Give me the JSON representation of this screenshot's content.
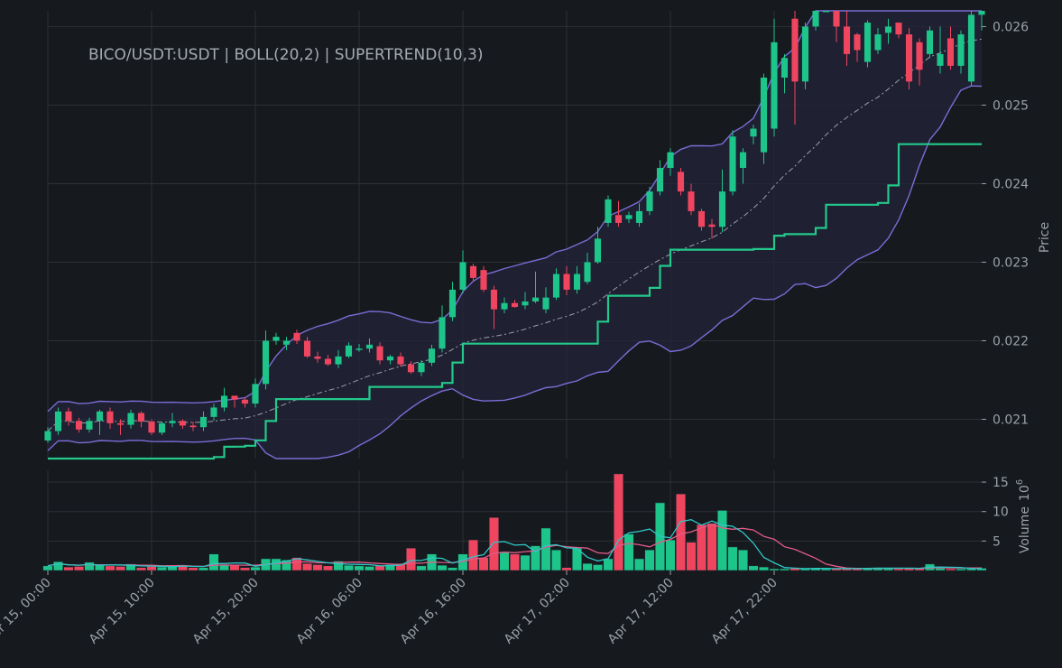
{
  "chart_data": {
    "type": "candlestick",
    "title": "BICO/USDT:USDT | BOLL(20,2) | SUPERTREND(10,3)",
    "price_axis": {
      "label": "Price",
      "ticks": [
        "0.021",
        "0.022",
        "0.023",
        "0.024",
        "0.025",
        "0.026"
      ],
      "ylim": [
        0.0205,
        0.0262
      ]
    },
    "volume_axis": {
      "label": "Volume",
      "exponent": "6",
      "ticks": [
        "5",
        "10",
        "15"
      ],
      "ylim": [
        0,
        17
      ]
    },
    "x_ticks": [
      "Apr 15, 00:00",
      "Apr 15, 10:00",
      "Apr 15, 20:00",
      "Apr 16, 06:00",
      "Apr 16, 16:00",
      "Apr 17, 02:00",
      "Apr 17, 12:00",
      "Apr 17, 22:00"
    ],
    "grid": true,
    "colors": {
      "up": "#1dc58a",
      "down": "#f0455f",
      "boll_band": "#7b6cd6",
      "boll_mid": "#9aa1a9",
      "boll_fill": "#232339",
      "supertrend_up": "#22c98b",
      "supertrend_down": "#f0455f",
      "vol_ma_fast": "#2fc6c6",
      "vol_ma_slow": "#e25b8a",
      "background": "#16191d"
    },
    "candles": {
      "open": [
        0.02073,
        0.02085,
        0.0211,
        0.02098,
        0.02087,
        0.02098,
        0.0211,
        0.02095,
        0.02093,
        0.02108,
        0.02097,
        0.02083,
        0.02095,
        0.02098,
        0.02092,
        0.0209,
        0.02103,
        0.02115,
        0.0213,
        0.02125,
        0.0212,
        0.02145,
        0.022,
        0.02195,
        0.0221,
        0.022,
        0.0218,
        0.02177,
        0.0217,
        0.0218,
        0.0219,
        0.0219,
        0.02193,
        0.02175,
        0.0218,
        0.0217,
        0.0216,
        0.02172,
        0.0219,
        0.0223,
        0.02265,
        0.02295,
        0.0229,
        0.02265,
        0.0224,
        0.02248,
        0.02245,
        0.0225,
        0.0224,
        0.02255,
        0.02285,
        0.02265,
        0.02275,
        0.023,
        0.0235,
        0.0236,
        0.02355,
        0.0235,
        0.02365,
        0.0239,
        0.0242,
        0.02415,
        0.0239,
        0.02365,
        0.02348,
        0.02345,
        0.0239,
        0.0242,
        0.0246,
        0.0244,
        0.0247,
        0.02535,
        0.0261,
        0.0253,
        0.026,
        0.02625,
        0.0262,
        0.026,
        0.0259,
        0.02555,
        0.0257,
        0.02592,
        0.02605,
        0.0259,
        0.0258,
        0.02565,
        0.0255,
        0.02585,
        0.0255,
        0.0253,
        0.02615
      ],
      "close": [
        0.02085,
        0.0211,
        0.02098,
        0.02087,
        0.02098,
        0.0211,
        0.02095,
        0.02093,
        0.02108,
        0.02097,
        0.02083,
        0.02095,
        0.02098,
        0.02092,
        0.0209,
        0.02103,
        0.02115,
        0.0213,
        0.02125,
        0.0212,
        0.02145,
        0.022,
        0.02205,
        0.022,
        0.022,
        0.0218,
        0.02177,
        0.0217,
        0.0218,
        0.02194,
        0.0219,
        0.02195,
        0.02175,
        0.0218,
        0.0217,
        0.0216,
        0.02172,
        0.0219,
        0.0223,
        0.02265,
        0.023,
        0.0228,
        0.02265,
        0.0224,
        0.02248,
        0.02243,
        0.0225,
        0.02255,
        0.02255,
        0.02285,
        0.02265,
        0.02285,
        0.023,
        0.0233,
        0.0238,
        0.0235,
        0.0236,
        0.02365,
        0.0239,
        0.0242,
        0.0244,
        0.0239,
        0.02365,
        0.02345,
        0.02345,
        0.0239,
        0.0246,
        0.0244,
        0.0247,
        0.02535,
        0.0258,
        0.0256,
        0.0253,
        0.026,
        0.02625,
        0.02635,
        0.026,
        0.02565,
        0.0257,
        0.02605,
        0.0259,
        0.026,
        0.0259,
        0.0253,
        0.02545,
        0.02595,
        0.02565,
        0.0255,
        0.0259,
        0.02615,
        0.0262
      ],
      "high": [
        0.0209,
        0.02115,
        0.02115,
        0.02102,
        0.02102,
        0.02112,
        0.02115,
        0.021,
        0.02112,
        0.0211,
        0.021,
        0.02097,
        0.02108,
        0.021,
        0.02097,
        0.0211,
        0.0212,
        0.0214,
        0.0213,
        0.02128,
        0.02152,
        0.02213,
        0.0221,
        0.02205,
        0.02214,
        0.02205,
        0.02186,
        0.02182,
        0.02188,
        0.02198,
        0.02196,
        0.02203,
        0.02198,
        0.02182,
        0.02185,
        0.02174,
        0.02175,
        0.02195,
        0.02245,
        0.02275,
        0.02315,
        0.02298,
        0.02295,
        0.0227,
        0.02255,
        0.02252,
        0.02262,
        0.02288,
        0.02268,
        0.02292,
        0.02295,
        0.02295,
        0.02312,
        0.02345,
        0.02385,
        0.02378,
        0.02364,
        0.02375,
        0.02396,
        0.0243,
        0.02445,
        0.0242,
        0.024,
        0.02368,
        0.02355,
        0.02418,
        0.02468,
        0.02445,
        0.02475,
        0.0254,
        0.0261,
        0.02565,
        0.0267,
        0.02605,
        0.0264,
        0.02635,
        0.0263,
        0.0264,
        0.02592,
        0.02608,
        0.02598,
        0.0261,
        0.026,
        0.02598,
        0.02585,
        0.026,
        0.026,
        0.026,
        0.02595,
        0.02625,
        0.02628
      ],
      "low": [
        0.0207,
        0.0208,
        0.02092,
        0.02083,
        0.02083,
        0.0208,
        0.02088,
        0.0208,
        0.02088,
        0.0209,
        0.0208,
        0.0208,
        0.0209,
        0.02088,
        0.02085,
        0.02085,
        0.02098,
        0.0211,
        0.02115,
        0.02115,
        0.02115,
        0.02138,
        0.02195,
        0.02188,
        0.02196,
        0.02178,
        0.02172,
        0.02168,
        0.02165,
        0.02178,
        0.02186,
        0.02185,
        0.0217,
        0.0217,
        0.02167,
        0.02158,
        0.02155,
        0.02168,
        0.02185,
        0.02225,
        0.0226,
        0.02275,
        0.02262,
        0.02215,
        0.02235,
        0.02242,
        0.0224,
        0.02248,
        0.02235,
        0.02252,
        0.02258,
        0.0226,
        0.02272,
        0.02298,
        0.02345,
        0.02345,
        0.0235,
        0.02345,
        0.0236,
        0.02385,
        0.0241,
        0.02385,
        0.0236,
        0.0234,
        0.0233,
        0.02338,
        0.02385,
        0.024,
        0.0245,
        0.02425,
        0.0246,
        0.02515,
        0.02475,
        0.0252,
        0.02595,
        0.0262,
        0.0258,
        0.0255,
        0.02555,
        0.02548,
        0.02565,
        0.02578,
        0.02585,
        0.0252,
        0.02525,
        0.0256,
        0.0254,
        0.02545,
        0.0254,
        0.02525,
        0.02595
      ]
    },
    "volume": [
      0.8,
      1.5,
      0.6,
      0.7,
      1.4,
      0.9,
      0.8,
      0.7,
      1.1,
      0.5,
      0.7,
      0.6,
      0.8,
      0.9,
      0.5,
      0.5,
      2.8,
      0.9,
      0.9,
      0.5,
      0.6,
      2.0,
      2.0,
      1.8,
      2.2,
      1.2,
      1.0,
      0.8,
      1.6,
      0.9,
      0.8,
      0.7,
      0.8,
      1.0,
      1.2,
      3.8,
      0.8,
      2.8,
      0.9,
      0.5,
      2.8,
      5.2,
      2.2,
      9.0,
      3.2,
      2.8,
      2.6,
      4.2,
      7.2,
      3.5,
      0.5,
      3.8,
      1.2,
      1.0,
      2.0,
      16.4,
      6.2,
      2.0,
      3.5,
      11.5,
      5.2,
      13.0,
      4.8,
      7.8,
      8.0,
      10.2,
      4.0,
      3.5,
      0.8,
      0.6,
      0.3,
      0.3,
      0.4,
      0.3,
      0.4,
      0.3,
      0.3,
      0.4,
      0.3,
      0.4,
      0.5,
      0.4,
      0.3,
      0.4,
      0.4,
      1.1,
      0.4,
      0.3,
      0.3,
      0.3,
      0.4
    ]
  }
}
